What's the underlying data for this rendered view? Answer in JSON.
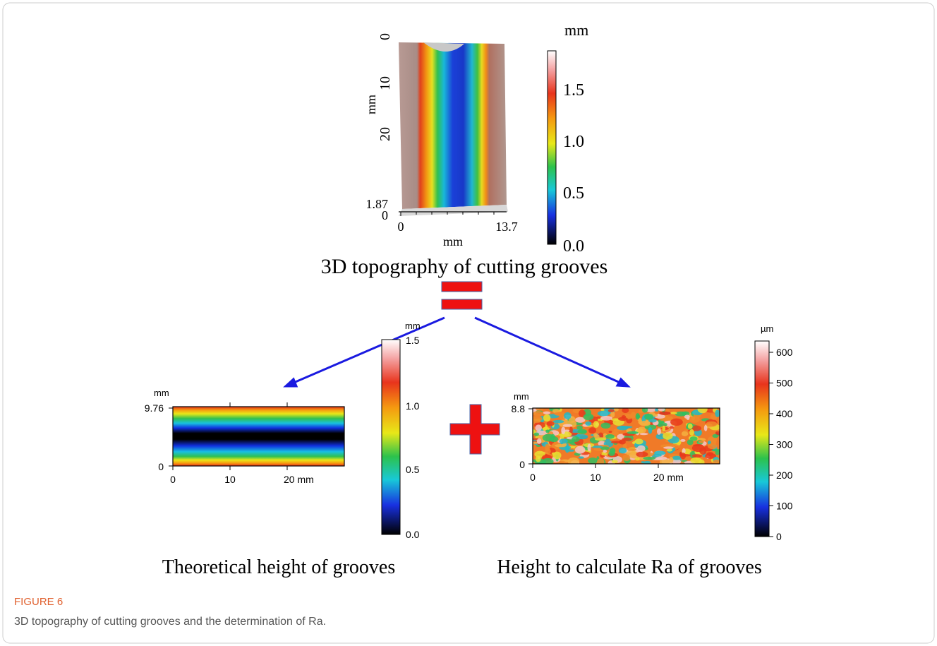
{
  "figure": {
    "top_panel": {
      "colorbar_unit": "mm",
      "colorbar_ticks": [
        "1.5",
        "1.0",
        "0.5",
        "0.0"
      ],
      "y_ticks": [
        "0",
        "10",
        "20"
      ],
      "y_label": "mm",
      "z_ticks": [
        "1.87",
        "0"
      ],
      "x_ticks": [
        "0",
        "13.7"
      ],
      "x_label": "mm",
      "caption": "3D topography of cutting grooves"
    },
    "left_panel": {
      "y_unit": "mm",
      "y_ticks": [
        "9.76",
        "0"
      ],
      "x_ticks": [
        "0",
        "10",
        "20 mm"
      ],
      "colorbar_unit": "mm",
      "colorbar_ticks": [
        "1.5",
        "1.0",
        "0.5",
        "0.0"
      ],
      "caption": "Theoretical height of grooves"
    },
    "right_panel": {
      "y_unit": "mm",
      "y_ticks": [
        "8.8",
        "0"
      ],
      "x_ticks": [
        "0",
        "10",
        "20 mm"
      ],
      "colorbar_unit": "µm",
      "colorbar_ticks": [
        "600",
        "500",
        "400",
        "300",
        "200",
        "100",
        "0"
      ],
      "caption": "Height to calculate Ra of grooves"
    },
    "label": "FIGURE 6",
    "caption": "3D topography of cutting grooves and the determination of Ra."
  }
}
